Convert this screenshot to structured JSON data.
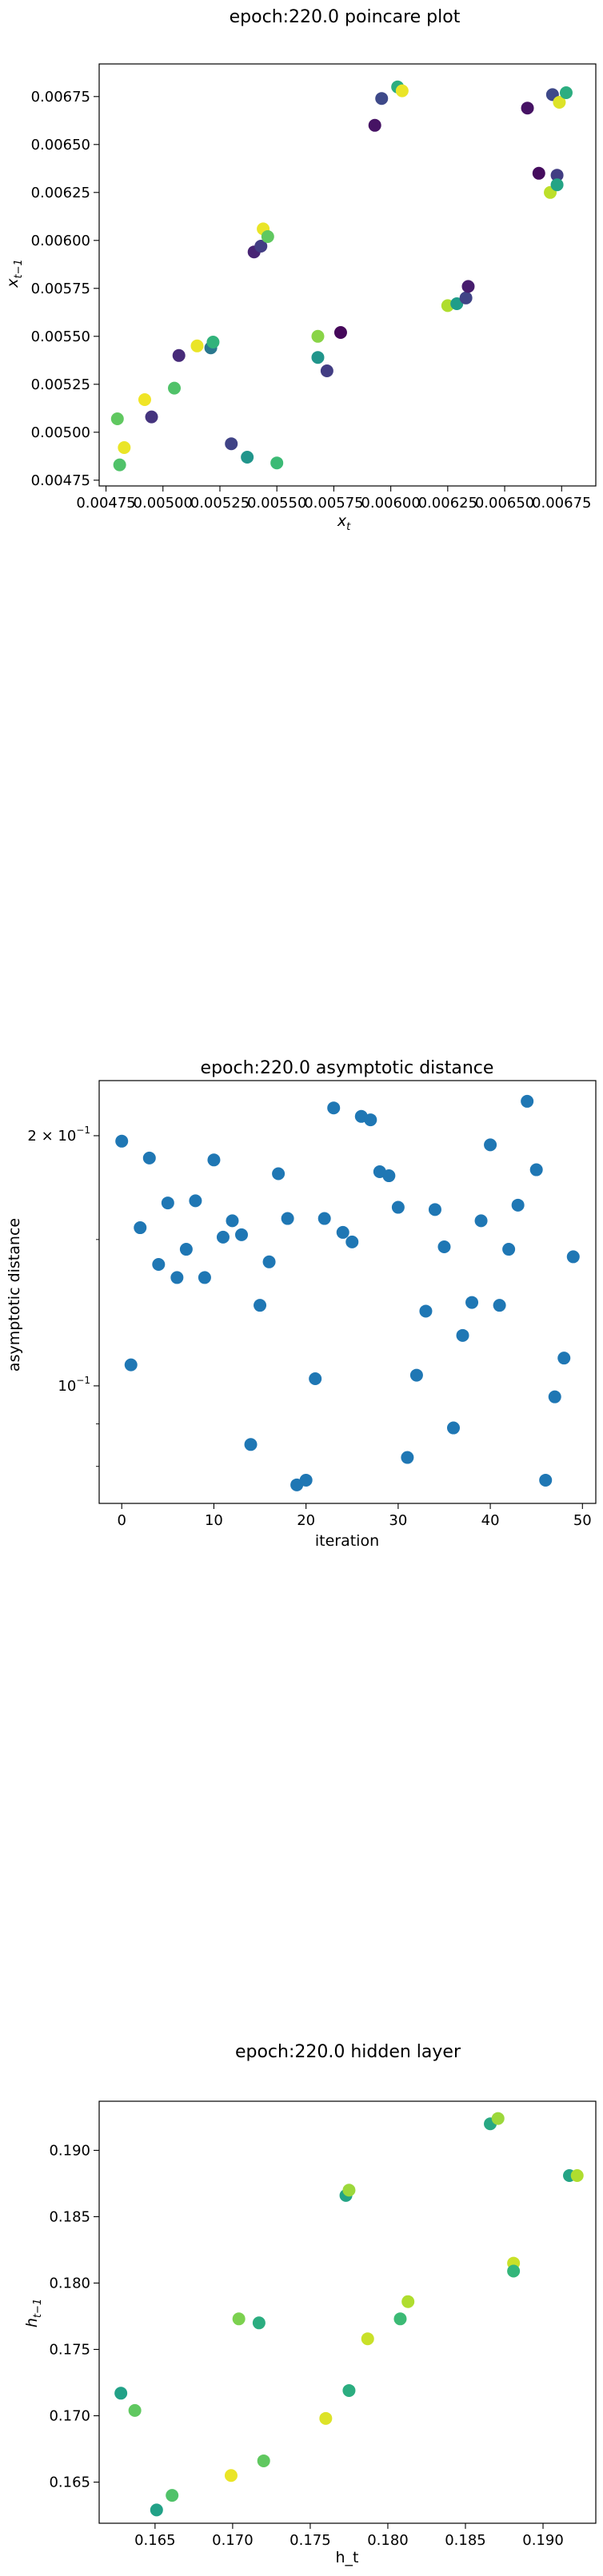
{
  "chart_data": [
    {
      "type": "scatter",
      "title": "epoch:220.0 poincare plot",
      "xlabel_main": "x",
      "xlabel_sub": "t",
      "ylabel_main": "x",
      "ylabel_sub": "t−1",
      "xlim": [
        0.00472,
        0.0069
      ],
      "ylim": [
        0.00472,
        0.00692
      ],
      "xticks": [
        0.00475,
        0.005,
        0.00525,
        0.0055,
        0.00575,
        0.006,
        0.00625,
        0.0065,
        0.00675
      ],
      "xtick_labels": [
        "0.00475",
        "0.00500",
        "0.00525",
        "0.00550",
        "0.00575",
        "0.00600",
        "0.00625",
        "0.00650",
        "0.00675"
      ],
      "yticks": [
        0.00475,
        0.005,
        0.00525,
        0.0055,
        0.00575,
        0.006,
        0.00625,
        0.0065,
        0.00675
      ],
      "ytick_labels": [
        "0.00475",
        "0.00500",
        "0.00525",
        "0.00550",
        "0.00575",
        "0.00600",
        "0.00625",
        "0.00650",
        "0.00675"
      ],
      "colormap": "viridis",
      "points": [
        {
          "x": 0.0048,
          "y": 0.00507,
          "c": 0.75
        },
        {
          "x": 0.00481,
          "y": 0.00483,
          "c": 0.72
        },
        {
          "x": 0.00483,
          "y": 0.00492,
          "c": 0.97
        },
        {
          "x": 0.00492,
          "y": 0.00517,
          "c": 0.98
        },
        {
          "x": 0.00495,
          "y": 0.00508,
          "c": 0.15
        },
        {
          "x": 0.00505,
          "y": 0.00523,
          "c": 0.72
        },
        {
          "x": 0.00507,
          "y": 0.0054,
          "c": 0.12
        },
        {
          "x": 0.00515,
          "y": 0.00545,
          "c": 0.97
        },
        {
          "x": 0.00521,
          "y": 0.00544,
          "c": 0.4
        },
        {
          "x": 0.00522,
          "y": 0.00547,
          "c": 0.65
        },
        {
          "x": 0.0053,
          "y": 0.00494,
          "c": 0.2
        },
        {
          "x": 0.00537,
          "y": 0.00487,
          "c": 0.52
        },
        {
          "x": 0.0054,
          "y": 0.00594,
          "c": 0.1
        },
        {
          "x": 0.00543,
          "y": 0.00597,
          "c": 0.18
        },
        {
          "x": 0.00544,
          "y": 0.00606,
          "c": 0.97
        },
        {
          "x": 0.00546,
          "y": 0.00602,
          "c": 0.75
        },
        {
          "x": 0.0055,
          "y": 0.00484,
          "c": 0.68
        },
        {
          "x": 0.00568,
          "y": 0.0055,
          "c": 0.82
        },
        {
          "x": 0.00568,
          "y": 0.00539,
          "c": 0.52
        },
        {
          "x": 0.00572,
          "y": 0.00532,
          "c": 0.18
        },
        {
          "x": 0.00578,
          "y": 0.00552,
          "c": 0.02
        },
        {
          "x": 0.00593,
          "y": 0.0066,
          "c": 0.05
        },
        {
          "x": 0.00596,
          "y": 0.00674,
          "c": 0.22
        },
        {
          "x": 0.00603,
          "y": 0.0068,
          "c": 0.62
        },
        {
          "x": 0.00605,
          "y": 0.00678,
          "c": 0.97
        },
        {
          "x": 0.00625,
          "y": 0.00566,
          "c": 0.88
        },
        {
          "x": 0.00629,
          "y": 0.00567,
          "c": 0.55
        },
        {
          "x": 0.00633,
          "y": 0.0057,
          "c": 0.2
        },
        {
          "x": 0.00634,
          "y": 0.00576,
          "c": 0.08
        },
        {
          "x": 0.0066,
          "y": 0.00669,
          "c": 0.05
        },
        {
          "x": 0.00665,
          "y": 0.00635,
          "c": 0.03
        },
        {
          "x": 0.0067,
          "y": 0.00625,
          "c": 0.9
        },
        {
          "x": 0.00671,
          "y": 0.00676,
          "c": 0.22
        },
        {
          "x": 0.00673,
          "y": 0.00634,
          "c": 0.18
        },
        {
          "x": 0.00673,
          "y": 0.00629,
          "c": 0.58
        },
        {
          "x": 0.00674,
          "y": 0.00672,
          "c": 0.95
        },
        {
          "x": 0.00677,
          "y": 0.00677,
          "c": 0.62
        }
      ],
      "grid": false
    },
    {
      "type": "scatter",
      "title": "epoch:220.0 asymptotic distance",
      "xlabel": "iteration",
      "ylabel": "asymptotic distance",
      "xlim": [
        -2.45,
        51.45
      ],
      "yscale": "log",
      "ylim": [
        0.0722,
        0.233
      ],
      "xticks": [
        0,
        10,
        20,
        30,
        40,
        50
      ],
      "xtick_labels": [
        "0",
        "10",
        "20",
        "30",
        "40",
        "50"
      ],
      "yticks_major": [
        0.1,
        0.2
      ],
      "yticks_minor": [
        0.08,
        0.09,
        0.15
      ],
      "ytick_labels": [
        "10",
        "2 × 10"
      ],
      "ytick_exponents": [
        "−1",
        "−1"
      ],
      "color": "#1f77b4",
      "x": [
        0,
        1,
        2,
        3,
        4,
        5,
        6,
        7,
        8,
        9,
        10,
        11,
        12,
        13,
        14,
        15,
        16,
        17,
        18,
        19,
        20,
        21,
        22,
        23,
        24,
        25,
        26,
        27,
        28,
        29,
        30,
        31,
        32,
        33,
        34,
        35,
        36,
        37,
        38,
        39,
        40,
        41,
        42,
        43,
        44,
        45,
        46,
        47,
        48,
        49
      ],
      "y": [
        0.197,
        0.106,
        0.155,
        0.188,
        0.14,
        0.166,
        0.135,
        0.146,
        0.167,
        0.135,
        0.187,
        0.151,
        0.158,
        0.152,
        0.085,
        0.125,
        0.141,
        0.18,
        0.159,
        0.076,
        0.077,
        0.102,
        0.159,
        0.216,
        0.153,
        0.149,
        0.211,
        0.209,
        0.181,
        0.179,
        0.164,
        0.082,
        0.103,
        0.123,
        0.163,
        0.147,
        0.089,
        0.115,
        0.126,
        0.158,
        0.195,
        0.125,
        0.146,
        0.165,
        0.22,
        0.182,
        0.077,
        0.097,
        0.108,
        0.143
      ],
      "grid": false
    },
    {
      "type": "scatter",
      "title": "epoch:220.0 hidden layer",
      "xlabel": "h_t",
      "ylabel_main": "h",
      "ylabel_sub": "t−1",
      "xlim": [
        0.1614,
        0.1934
      ],
      "ylim": [
        0.1619,
        0.1937
      ],
      "xticks": [
        0.165,
        0.17,
        0.175,
        0.18,
        0.185,
        0.19
      ],
      "xtick_labels": [
        "0.165",
        "0.170",
        "0.175",
        "0.180",
        "0.185",
        "0.190"
      ],
      "yticks": [
        0.165,
        0.17,
        0.175,
        0.18,
        0.185,
        0.19
      ],
      "ytick_labels": [
        "0.165",
        "0.170",
        "0.175",
        "0.180",
        "0.185",
        "0.190"
      ],
      "colormap": "viridis",
      "points": [
        {
          "x": 0.1628,
          "y": 0.1717,
          "c": 0.57
        },
        {
          "x": 0.1637,
          "y": 0.1704,
          "c": 0.75
        },
        {
          "x": 0.1651,
          "y": 0.1629,
          "c": 0.57
        },
        {
          "x": 0.1661,
          "y": 0.164,
          "c": 0.72
        },
        {
          "x": 0.1699,
          "y": 0.1655,
          "c": 0.97
        },
        {
          "x": 0.1704,
          "y": 0.1773,
          "c": 0.8
        },
        {
          "x": 0.1717,
          "y": 0.177,
          "c": 0.62
        },
        {
          "x": 0.172,
          "y": 0.1666,
          "c": 0.75
        },
        {
          "x": 0.176,
          "y": 0.1698,
          "c": 0.95
        },
        {
          "x": 0.1773,
          "y": 0.1866,
          "c": 0.58
        },
        {
          "x": 0.1775,
          "y": 0.187,
          "c": 0.85
        },
        {
          "x": 0.1775,
          "y": 0.1719,
          "c": 0.62
        },
        {
          "x": 0.1787,
          "y": 0.1758,
          "c": 0.92
        },
        {
          "x": 0.1808,
          "y": 0.1773,
          "c": 0.68
        },
        {
          "x": 0.1813,
          "y": 0.1786,
          "c": 0.88
        },
        {
          "x": 0.1866,
          "y": 0.192,
          "c": 0.6
        },
        {
          "x": 0.1871,
          "y": 0.1924,
          "c": 0.85
        },
        {
          "x": 0.1881,
          "y": 0.1815,
          "c": 0.92
        },
        {
          "x": 0.1881,
          "y": 0.1809,
          "c": 0.66
        },
        {
          "x": 0.1917,
          "y": 0.1881,
          "c": 0.58
        },
        {
          "x": 0.1922,
          "y": 0.1881,
          "c": 0.88
        }
      ],
      "grid": false
    }
  ]
}
